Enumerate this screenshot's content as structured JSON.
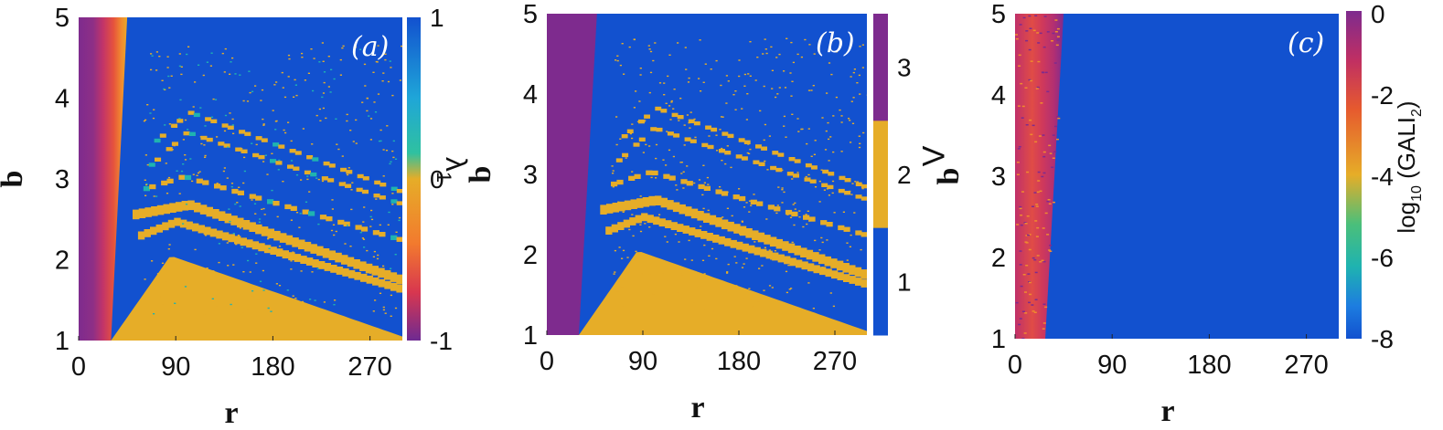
{
  "chart_data": [
    {
      "type": "heatmap",
      "panel_label": "(a)",
      "xlabel": "r",
      "ylabel": "b",
      "xlim": [
        0,
        300
      ],
      "ylim": [
        1,
        5
      ],
      "xticks": [
        "0",
        "90",
        "180",
        "270"
      ],
      "yticks": [
        "1",
        "2",
        "3",
        "4",
        "5"
      ],
      "colorbar": {
        "label": "λ",
        "label_subscript": "1",
        "ticks": [
          "1",
          "0",
          "-1"
        ],
        "range": [
          -1,
          1
        ],
        "colormap": "parula"
      },
      "regions": [
        {
          "name": "negative λ1 band",
          "value": -1,
          "r_range": [
            0,
            45
          ]
        },
        {
          "name": "chaotic region",
          "value": 1,
          "color": "#1251cf"
        },
        {
          "name": "periodic region",
          "value": 0,
          "color": "#e6ad28"
        }
      ]
    },
    {
      "type": "heatmap",
      "panel_label": "(b)",
      "xlabel": "r",
      "ylabel": "b",
      "xlim": [
        0,
        300
      ],
      "ylim": [
        1,
        5
      ],
      "xticks": [
        "0",
        "90",
        "180",
        "270"
      ],
      "yticks": [
        "1",
        "2",
        "3",
        "4",
        "5"
      ],
      "colorbar": {
        "label": "Λ",
        "ticks": [
          "3",
          "2",
          "1"
        ],
        "levels": [
          {
            "value": 3,
            "color": "#7e2b8e"
          },
          {
            "value": 2,
            "color": "#e6ad28"
          },
          {
            "value": 1,
            "color": "#1251cf"
          }
        ]
      }
    },
    {
      "type": "heatmap",
      "panel_label": "(c)",
      "xlabel": "r",
      "ylabel": "b",
      "xlim": [
        0,
        300
      ],
      "ylim": [
        1,
        5
      ],
      "xticks": [
        "0",
        "90",
        "180",
        "270"
      ],
      "yticks": [
        "1",
        "2",
        "3",
        "4",
        "5"
      ],
      "colorbar": {
        "label_prefix": "log",
        "label_base": "10",
        "label_arg": "(GALI",
        "label_arg_sub": "2",
        "label_close": ")",
        "ticks": [
          "0",
          "-2",
          "-4",
          "-6",
          "-8"
        ],
        "range": [
          -8,
          0
        ],
        "colormap": "parula"
      }
    }
  ],
  "colors": {
    "blue": "#1251cf",
    "yellow": "#e6ad28",
    "purple": "#7e2b8e",
    "red": "#d8374f",
    "teal": "#1fb3b0"
  }
}
